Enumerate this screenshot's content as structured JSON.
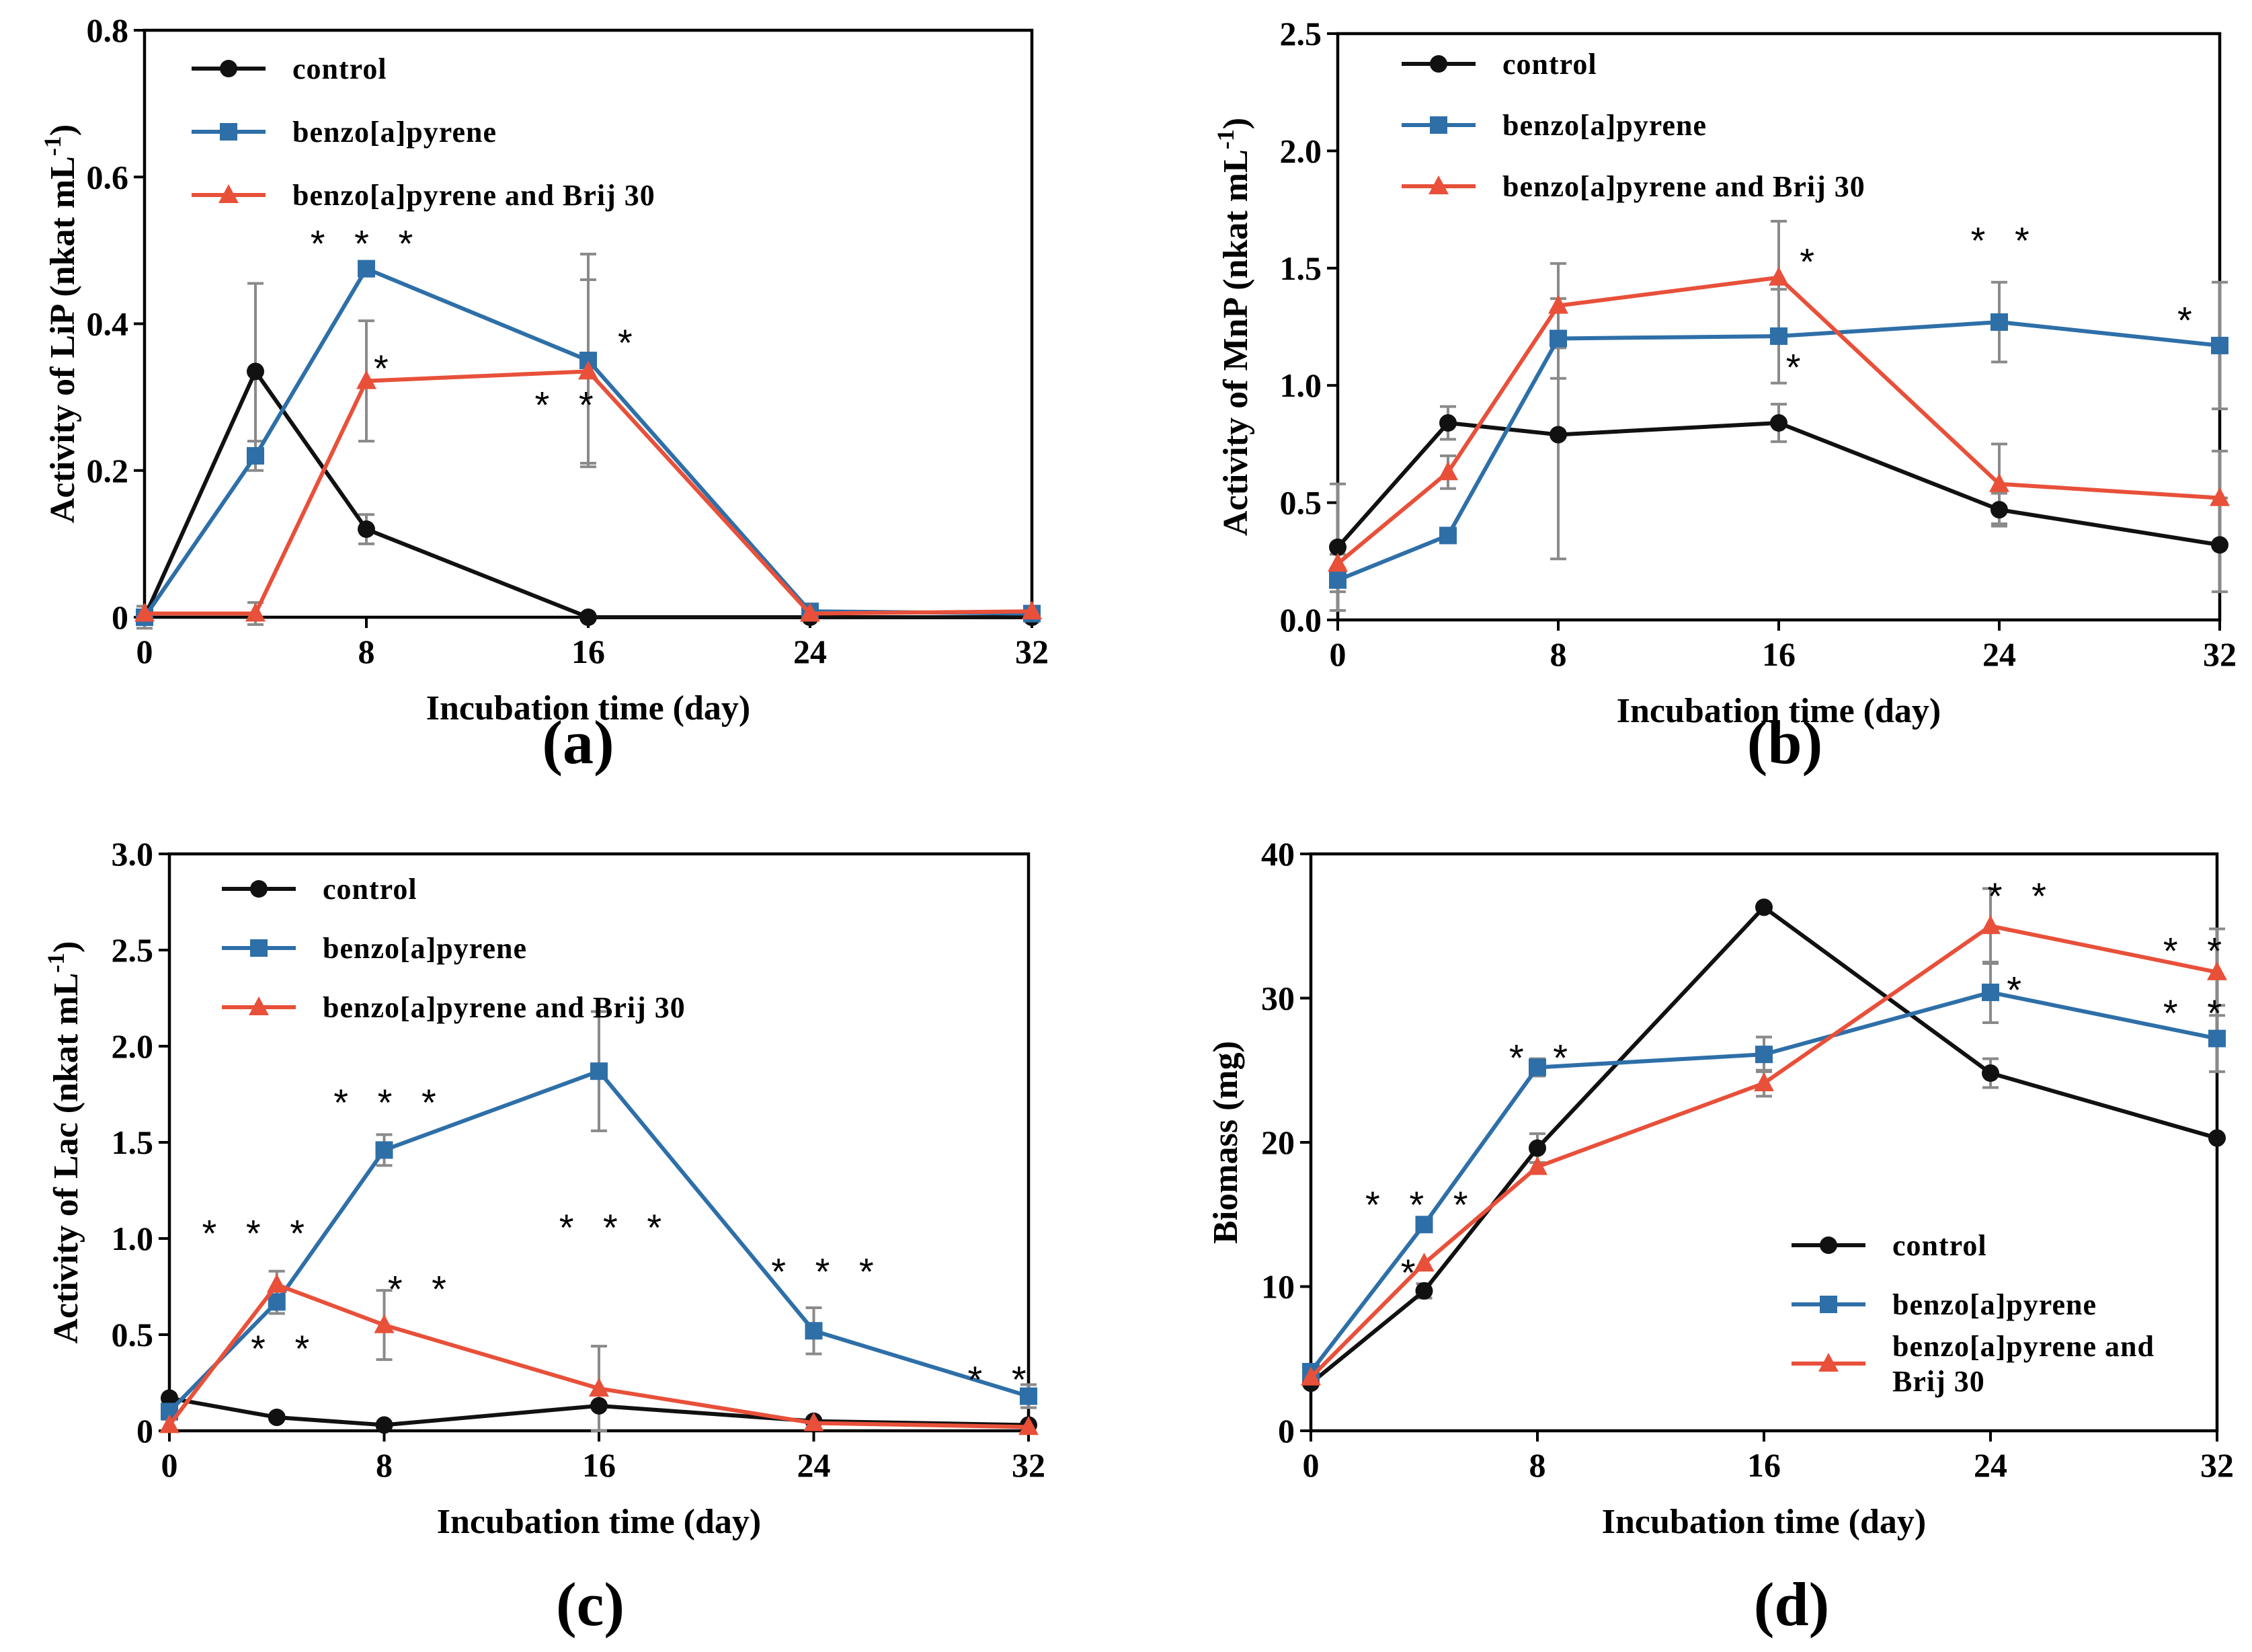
{
  "colors": {
    "control": "#111111",
    "bap": "#2E6FA8",
    "brij": "#E8503A",
    "error": "#8a8a8a"
  },
  "chart_data": [
    {
      "type": "line",
      "panel": "(a)",
      "xlabel": "Incubation time (day)",
      "ylabel": "Activity of LiP (nkat mL",
      "ylabel_sup": "-1",
      "ylabel_end": ")",
      "xlim": [
        0,
        32
      ],
      "ylim": [
        0,
        0.8
      ],
      "xticks": [
        0,
        8,
        16,
        24,
        32
      ],
      "xtick_labels": [
        "0",
        "8",
        "16",
        "24",
        "32"
      ],
      "yticks": [
        0,
        0.2,
        0.4,
        0.6,
        0.8
      ],
      "ytick_labels": [
        "0",
        "0.2",
        "0.4",
        "0.6",
        "0.8"
      ],
      "legend_position": "top-left",
      "series": [
        {
          "name": "control",
          "marker": "circle",
          "x": [
            0,
            4,
            8,
            16,
            24,
            32
          ],
          "y": [
            0.0,
            0.335,
            0.12,
            0.0,
            0.0,
            0.0
          ],
          "err": [
            0.015,
            0.12,
            0.02,
            0,
            0,
            0
          ]
        },
        {
          "name": "benzo[a]pyrene",
          "marker": "square",
          "x": [
            0,
            4,
            8,
            16,
            24,
            32
          ],
          "y": [
            0.0,
            0.22,
            0.475,
            0.35,
            0.008,
            0.005
          ],
          "err": [
            0,
            0.02,
            0.01,
            0.145,
            0,
            0
          ]
        },
        {
          "name": "benzo[a]pyrene  and Brij 30",
          "marker": "triangle",
          "x": [
            0,
            4,
            8,
            16,
            24,
            32
          ],
          "y": [
            0.005,
            0.005,
            0.322,
            0.335,
            0.005,
            0.008
          ],
          "err": [
            0,
            0.015,
            0.082,
            0.125,
            0,
            0
          ]
        }
      ],
      "annotations": [
        {
          "text": "***",
          "x": 8,
          "y": 0.51
        },
        {
          "text": "*",
          "x": 8.7,
          "y": 0.34
        },
        {
          "text": "*",
          "x": 17.5,
          "y": 0.375
        },
        {
          "text": "**",
          "x": 15.3,
          "y": 0.29
        }
      ]
    },
    {
      "type": "line",
      "panel": "(b)",
      "xlabel": "Incubation time (day)",
      "ylabel": "Activity of MnP (nkat mL",
      "ylabel_sup": "-1",
      "ylabel_end": ")",
      "xlim": [
        0,
        32
      ],
      "ylim": [
        0,
        2.5
      ],
      "xticks": [
        0,
        8,
        16,
        24,
        32
      ],
      "xtick_labels": [
        "0",
        "8",
        "16",
        "24",
        "32"
      ],
      "yticks": [
        0,
        0.5,
        1.0,
        1.5,
        2.0,
        2.5
      ],
      "ytick_labels": [
        "0.0",
        "0.5",
        "1.0",
        "1.5",
        "2.0",
        "2.5"
      ],
      "legend_position": "top-left",
      "series": [
        {
          "name": "control",
          "marker": "circle",
          "x": [
            0,
            4,
            8,
            16,
            24,
            32
          ],
          "y": [
            0.31,
            0.84,
            0.79,
            0.84,
            0.47,
            0.32
          ],
          "err": [
            0.27,
            0.07,
            0.53,
            0.08,
            0.07,
            0.2
          ]
        },
        {
          "name": "benzo[a]pyrene",
          "marker": "square",
          "x": [
            0,
            4,
            8,
            16,
            24,
            32
          ],
          "y": [
            0.17,
            0.36,
            1.2,
            1.21,
            1.27,
            1.17
          ],
          "err": [
            0.05,
            0.03,
            0.17,
            0.2,
            0.17,
            0.27
          ]
        },
        {
          "name": "benzo[a]pyrene and Brij 30",
          "marker": "triangle",
          "x": [
            0,
            4,
            8,
            16,
            24,
            32
          ],
          "y": [
            0.24,
            0.63,
            1.34,
            1.46,
            0.58,
            0.52
          ],
          "err": [
            0.04,
            0.07,
            0.18,
            0.24,
            0.17,
            0.2
          ]
        }
      ],
      "annotations": [
        {
          "text": "*",
          "x": 17.2,
          "y": 1.53
        },
        {
          "text": "*",
          "x": 16.7,
          "y": 1.08
        },
        {
          "text": "**",
          "x": 24.2,
          "y": 1.62
        },
        {
          "text": "*",
          "x": 30.9,
          "y": 1.28
        }
      ]
    },
    {
      "type": "line",
      "panel": "(c)",
      "xlabel": "Incubation time (day)",
      "ylabel": "Activity of Lac (nkat mL",
      "ylabel_sup": "-1",
      "ylabel_end": ")",
      "xlim": [
        0,
        32
      ],
      "ylim": [
        0,
        3.0
      ],
      "xticks": [
        0,
        8,
        16,
        24,
        32
      ],
      "xtick_labels": [
        "0",
        "8",
        "16",
        "24",
        "32"
      ],
      "yticks": [
        0,
        0.5,
        1.0,
        1.5,
        2.0,
        2.5,
        3.0
      ],
      "ytick_labels": [
        "0",
        "0.5",
        "1.0",
        "1.5",
        "2.0",
        "2.5",
        "3.0"
      ],
      "legend_position": "top-left",
      "series": [
        {
          "name": "control",
          "marker": "circle",
          "x": [
            0,
            4,
            8,
            16,
            24,
            32
          ],
          "y": [
            0.17,
            0.07,
            0.03,
            0.13,
            0.05,
            0.03
          ],
          "err": [
            0,
            0,
            0,
            0,
            0,
            0
          ]
        },
        {
          "name": "benzo[a]pyrene",
          "marker": "square",
          "x": [
            0,
            4,
            8,
            16,
            24,
            32
          ],
          "y": [
            0.1,
            0.67,
            1.46,
            1.87,
            0.52,
            0.18
          ],
          "err": [
            0.04,
            0.06,
            0.08,
            0.31,
            0.12,
            0.06
          ]
        },
        {
          "name": "benzo[a]pyrene and Brij 30",
          "marker": "triangle",
          "x": [
            0,
            4,
            8,
            16,
            24,
            32
          ],
          "y": [
            0.03,
            0.76,
            0.55,
            0.22,
            0.04,
            0.02
          ],
          "err": [
            0,
            0.07,
            0.18,
            0.22,
            0,
            0
          ]
        }
      ],
      "annotations": [
        {
          "text": "***",
          "x": 3.3,
          "y": 1.03
        },
        {
          "text": "**",
          "x": 4.3,
          "y": 0.43
        },
        {
          "text": "***",
          "x": 8.2,
          "y": 1.71
        },
        {
          "text": "**",
          "x": 9.4,
          "y": 0.74
        },
        {
          "text": "***",
          "x": 16.6,
          "y": 1.06
        },
        {
          "text": "***",
          "x": 24.5,
          "y": 0.83
        },
        {
          "text": "**",
          "x": 31.0,
          "y": 0.27
        }
      ]
    },
    {
      "type": "line",
      "panel": "(d)",
      "xlabel": "Incubation time (day)",
      "ylabel": "Biomass (mg)",
      "ylabel_sup": "",
      "ylabel_end": "",
      "xlim": [
        0,
        32
      ],
      "ylim": [
        0,
        40
      ],
      "xticks": [
        0,
        8,
        16,
        24,
        32
      ],
      "xtick_labels": [
        "0",
        "8",
        "16",
        "24",
        "32"
      ],
      "yticks": [
        0,
        10,
        20,
        30,
        40
      ],
      "ytick_labels": [
        "0",
        "10",
        "20",
        "30",
        "40"
      ],
      "legend_position": "bottom-right",
      "series": [
        {
          "name": "control",
          "marker": "circle",
          "x": [
            0,
            4,
            8,
            16,
            24,
            32
          ],
          "y": [
            3.3,
            9.7,
            19.6,
            36.3,
            24.8,
            20.3
          ],
          "err": [
            0,
            0.5,
            1.0,
            0,
            1.0,
            0
          ]
        },
        {
          "name": "benzo[a]pyrene",
          "marker": "square",
          "x": [
            0,
            4,
            8,
            16,
            24,
            32
          ],
          "y": [
            4.1,
            14.3,
            25.2,
            26.1,
            30.4,
            27.2
          ],
          "err": [
            0,
            0.5,
            0.6,
            1.2,
            2.1,
            2.3
          ]
        },
        {
          "name": "benzo[a]pyrene  and\nBrij 30",
          "marker": "triangle",
          "x": [
            0,
            4,
            8,
            16,
            24,
            32
          ],
          "y": [
            3.7,
            11.6,
            18.3,
            24.1,
            35.0,
            31.8
          ],
          "err": [
            0,
            0,
            0,
            0.9,
            2.6,
            3.0
          ]
        }
      ],
      "annotations": [
        {
          "text": "***",
          "x": 3.9,
          "y": 15.7
        },
        {
          "text": "*",
          "x": 3.6,
          "y": 11.0
        },
        {
          "text": "**",
          "x": 8.2,
          "y": 25.9
        },
        {
          "text": "**",
          "x": 25.1,
          "y": 37.1
        },
        {
          "text": "*",
          "x": 25.0,
          "y": 30.6
        },
        {
          "text": "**",
          "x": 31.3,
          "y": 33.3
        },
        {
          "text": "**",
          "x": 31.3,
          "y": 29.0
        }
      ]
    }
  ]
}
